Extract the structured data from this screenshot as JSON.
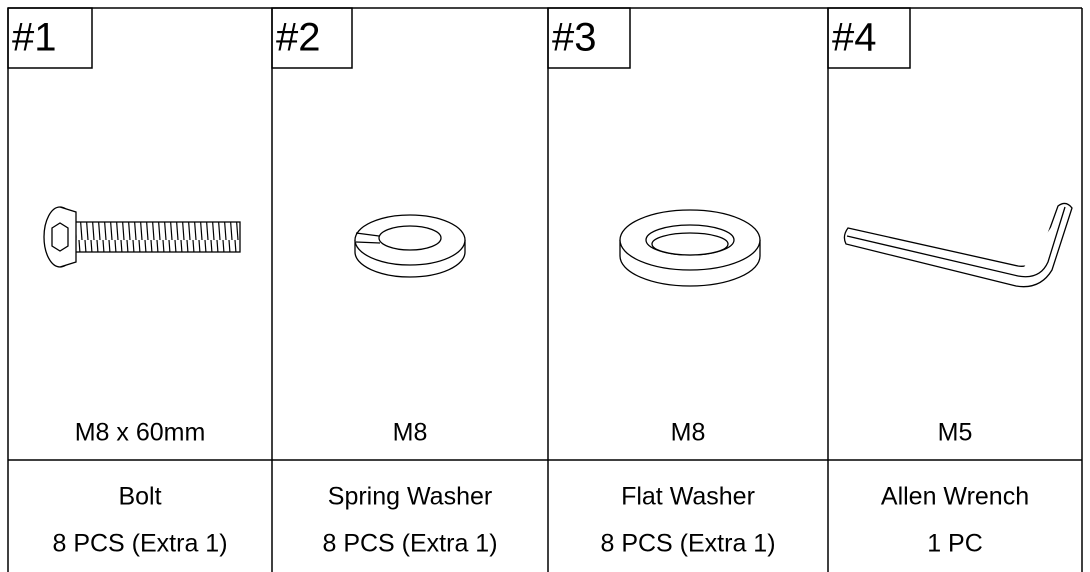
{
  "items": [
    {
      "number": "#1",
      "size": "M8 x 60mm",
      "name": "Bolt",
      "quantity": "8 PCS (Extra 1)"
    },
    {
      "number": "#2",
      "size": "M8",
      "name": "Spring Washer",
      "quantity": "8 PCS (Extra 1)"
    },
    {
      "number": "#3",
      "size": "M8",
      "name": "Flat Washer",
      "quantity": "8 PCS (Extra 1)"
    },
    {
      "number": "#4",
      "size": "M5",
      "name": "Allen Wrench",
      "quantity": "1 PC"
    }
  ]
}
